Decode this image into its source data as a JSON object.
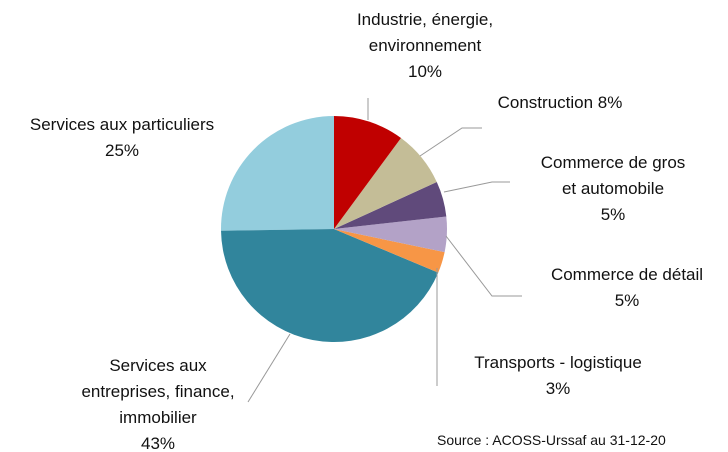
{
  "chart_data": {
    "type": "pie",
    "categories": [
      "Industrie, énergie, environnement",
      "Construction",
      "Commerce de gros et automobile",
      "Commerce de détail",
      "Transports - logistique",
      "Services aux entreprises, finance, immobilier",
      "Services aux particuliers"
    ],
    "values": [
      10,
      8,
      5,
      5,
      3,
      43,
      25
    ],
    "value_labels": [
      "10%",
      "8%",
      "5%",
      "5%",
      "3%",
      "43%",
      "25%"
    ],
    "colors": [
      "#c00000",
      "#c4bd97",
      "#604a7b",
      "#b3a2c7",
      "#f79646",
      "#31859c",
      "#93cddd"
    ],
    "source": "Source : ACOSS-Urssaf au 31-12-20"
  }
}
